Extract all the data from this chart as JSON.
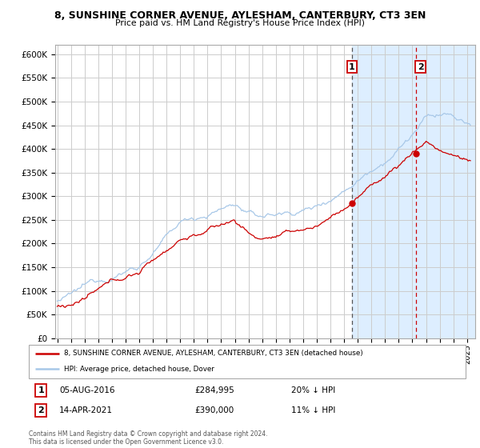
{
  "title": "8, SUNSHINE CORNER AVENUE, AYLESHAM, CANTERBURY, CT3 3EN",
  "subtitle": "Price paid vs. HM Land Registry's House Price Index (HPI)",
  "legend_line1": "8, SUNSHINE CORNER AVENUE, AYLESHAM, CANTERBURY, CT3 3EN (detached house)",
  "legend_line2": "HPI: Average price, detached house, Dover",
  "annotation1_date": "05-AUG-2016",
  "annotation1_price": "£284,995",
  "annotation1_hpi": "20% ↓ HPI",
  "annotation2_date": "14-APR-2021",
  "annotation2_price": "£390,000",
  "annotation2_hpi": "11% ↓ HPI",
  "footer": "Contains HM Land Registry data © Crown copyright and database right 2024.\nThis data is licensed under the Open Government Licence v3.0.",
  "hpi_color": "#a8c8e8",
  "price_color": "#cc0000",
  "shade_color": "#ddeeff",
  "ylim": [
    0,
    620000
  ],
  "yticks": [
    0,
    50000,
    100000,
    150000,
    200000,
    250000,
    300000,
    350000,
    400000,
    450000,
    500000,
    550000,
    600000
  ],
  "t1_year": 2016.583,
  "t2_year": 2021.28,
  "annotation1_price_val": 284995,
  "annotation2_price_val": 390000,
  "annotation1_hpi_val": 356244,
  "annotation2_hpi_val": 438000
}
